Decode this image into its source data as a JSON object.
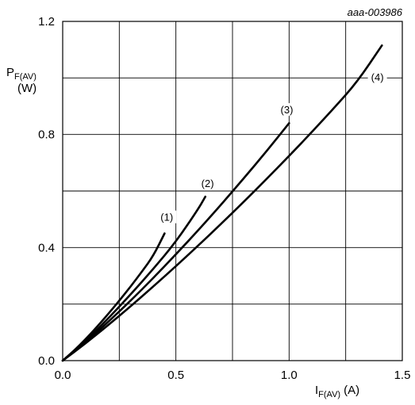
{
  "chart_data": {
    "type": "line",
    "reference": "aaa-003986",
    "xlabel": {
      "main": "I",
      "sub": "F(AV)",
      "unit": "(A)"
    },
    "ylabel": {
      "main": "P",
      "sub": "F(AV)",
      "unit": "(W)"
    },
    "xlim": [
      0,
      1.5
    ],
    "ylim": [
      0,
      1.2
    ],
    "grid": true,
    "x_ticks": [
      "0.0",
      "0.5",
      "1.0",
      "1.5"
    ],
    "y_ticks": [
      "0.0",
      "0.4",
      "0.8",
      "1.2"
    ],
    "x_tick_values": [
      0,
      0.5,
      1.0,
      1.5
    ],
    "y_tick_values": [
      0,
      0.4,
      0.8,
      1.2
    ],
    "series": [
      {
        "label": "(1)",
        "x": [
          0,
          0.05,
          0.1,
          0.15,
          0.2,
          0.25,
          0.3,
          0.35,
          0.4,
          0.45
        ],
        "y": [
          0,
          0.035,
          0.075,
          0.118,
          0.164,
          0.212,
          0.262,
          0.315,
          0.37,
          0.45
        ]
      },
      {
        "label": "(2)",
        "x": [
          0,
          0.05,
          0.1,
          0.2,
          0.3,
          0.4,
          0.5,
          0.6,
          0.63
        ],
        "y": [
          0,
          0.032,
          0.068,
          0.148,
          0.234,
          0.324,
          0.42,
          0.538,
          0.58
        ]
      },
      {
        "label": "(3)",
        "x": [
          0,
          0.1,
          0.2,
          0.3,
          0.4,
          0.5,
          0.6,
          0.7,
          0.8,
          0.9,
          1.0
        ],
        "y": [
          0,
          0.064,
          0.136,
          0.212,
          0.292,
          0.376,
          0.462,
          0.552,
          0.645,
          0.74,
          0.84
        ]
      },
      {
        "label": "(4)",
        "x": [
          0,
          0.1,
          0.2,
          0.3,
          0.4,
          0.5,
          0.6,
          0.7,
          0.8,
          0.9,
          1.0,
          1.1,
          1.2,
          1.3,
          1.41
        ],
        "y": [
          0,
          0.06,
          0.125,
          0.192,
          0.262,
          0.334,
          0.408,
          0.484,
          0.562,
          0.642,
          0.724,
          0.808,
          0.895,
          0.985,
          1.115
        ]
      }
    ],
    "curve_labels": [
      {
        "text": "(1)",
        "x": 0.46,
        "y": 0.5
      },
      {
        "text": "(2)",
        "x": 0.64,
        "y": 0.62
      },
      {
        "text": "(3)",
        "x": 0.99,
        "y": 0.88
      },
      {
        "text": "(4)",
        "x": 1.39,
        "y": 0.995
      }
    ]
  }
}
